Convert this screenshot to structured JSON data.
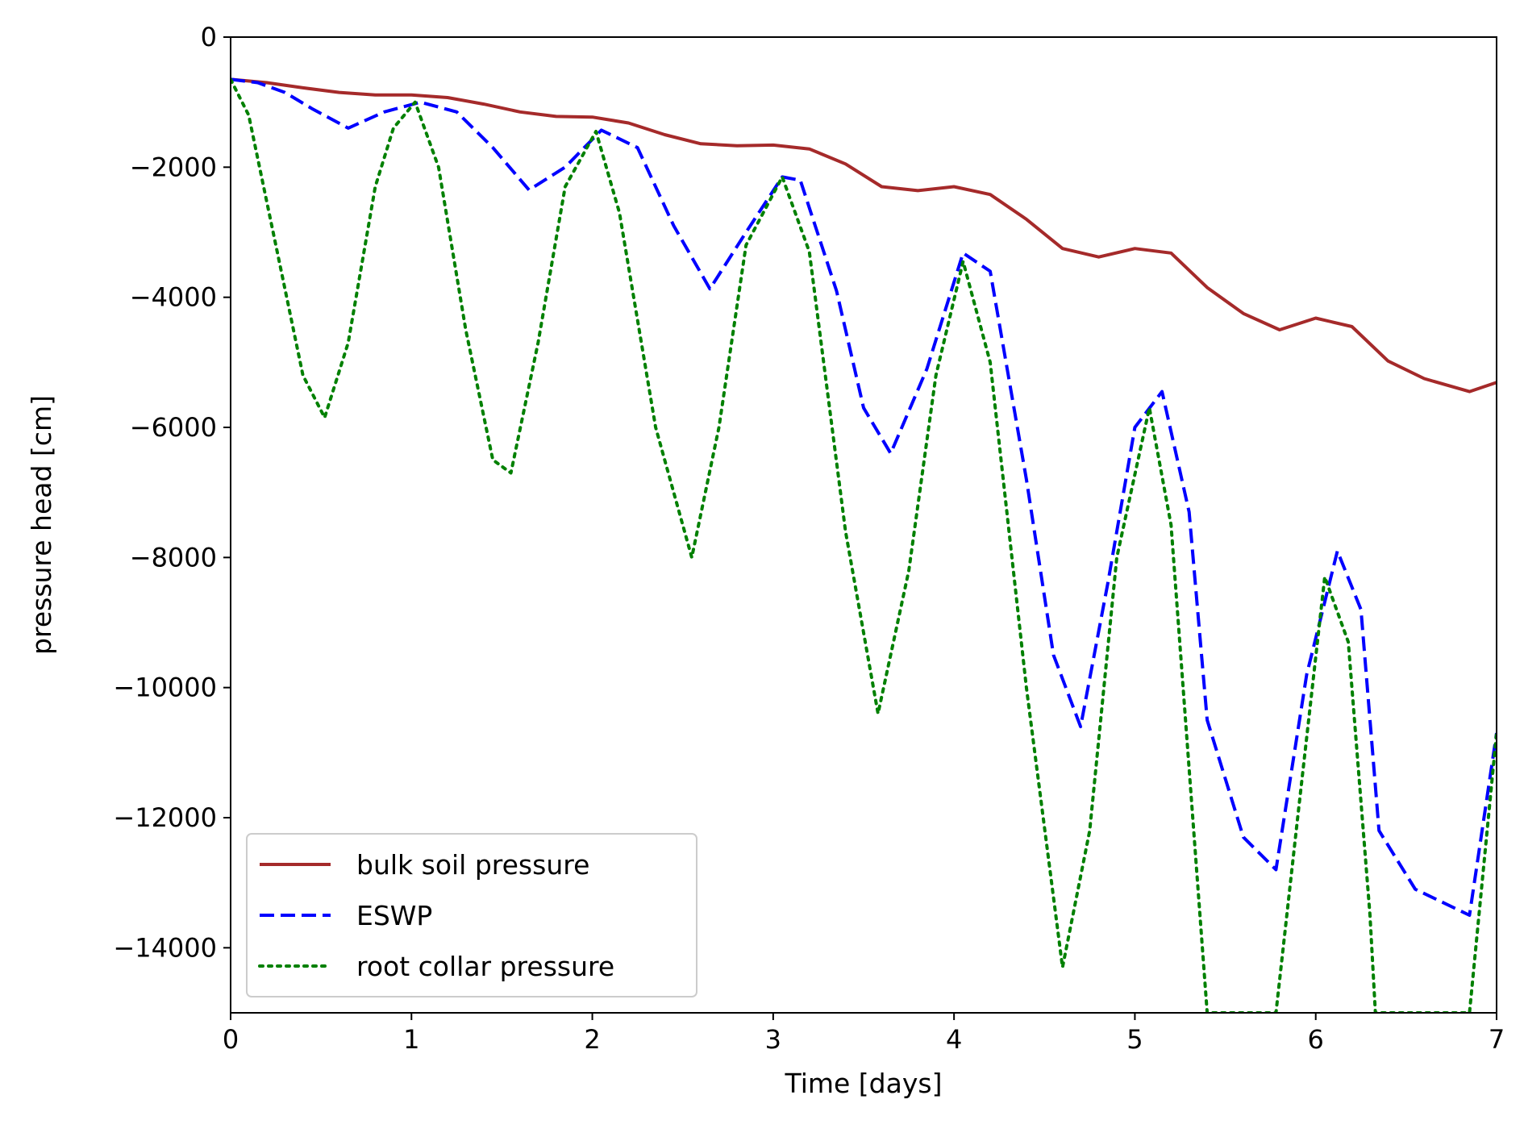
{
  "chart_data": {
    "type": "line",
    "xlabel": "Time [days]",
    "ylabel": "pressure head [cm]",
    "xlim": [
      0,
      7
    ],
    "ylim": [
      -15000,
      0
    ],
    "xticks": [
      0,
      1,
      2,
      3,
      4,
      5,
      6,
      7
    ],
    "xtick_labels": [
      "0",
      "1",
      "2",
      "3",
      "4",
      "5",
      "6",
      "7"
    ],
    "yticks": [
      0,
      -2000,
      -4000,
      -6000,
      -8000,
      -10000,
      -12000,
      -14000
    ],
    "ytick_labels": [
      "0",
      "−2000",
      "−4000",
      "−6000",
      "−8000",
      "−10000",
      "−12000",
      "−14000"
    ],
    "grid": false,
    "legend_position": "lower-left",
    "series": [
      {
        "name": "bulk soil pressure",
        "color": "#a52a2a",
        "style": "solid",
        "x": [
          0,
          0.2,
          0.4,
          0.6,
          0.8,
          1.0,
          1.2,
          1.4,
          1.6,
          1.8,
          2.0,
          2.2,
          2.4,
          2.6,
          2.8,
          3.0,
          3.2,
          3.4,
          3.6,
          3.8,
          4.0,
          4.2,
          4.4,
          4.6,
          4.8,
          5.0,
          5.2,
          5.4,
          5.6,
          5.8,
          6.0,
          6.2,
          6.4,
          6.6,
          6.85,
          7.0
        ],
        "y": [
          -650,
          -700,
          -780,
          -850,
          -890,
          -890,
          -930,
          -1030,
          -1150,
          -1220,
          -1230,
          -1320,
          -1500,
          -1640,
          -1670,
          -1660,
          -1720,
          -1950,
          -2300,
          -2360,
          -2300,
          -2420,
          -2800,
          -3250,
          -3380,
          -3250,
          -3320,
          -3850,
          -4250,
          -4500,
          -4320,
          -4450,
          -4980,
          -5250,
          -5450,
          -5310
        ]
      },
      {
        "name": "ESWP",
        "color": "#0000ff",
        "style": "dashed",
        "x": [
          0,
          0.15,
          0.3,
          0.45,
          0.65,
          0.85,
          1.05,
          1.25,
          1.45,
          1.65,
          1.85,
          2.05,
          2.25,
          2.45,
          2.65,
          2.85,
          3.05,
          3.15,
          3.35,
          3.5,
          3.65,
          3.85,
          4.05,
          4.2,
          4.4,
          4.55,
          4.7,
          4.85,
          5.0,
          5.15,
          5.3,
          5.4,
          5.6,
          5.78,
          5.95,
          6.12,
          6.25,
          6.35,
          6.55,
          6.85,
          7.0
        ],
        "y": [
          -650,
          -700,
          -850,
          -1100,
          -1400,
          -1150,
          -1000,
          -1150,
          -1700,
          -2350,
          -2000,
          -1430,
          -1700,
          -2900,
          -3870,
          -3000,
          -2150,
          -2200,
          -3900,
          -5700,
          -6400,
          -5100,
          -3320,
          -3600,
          -6800,
          -9500,
          -10600,
          -8400,
          -6000,
          -5450,
          -7300,
          -10500,
          -12300,
          -12800,
          -9800,
          -7900,
          -8800,
          -12200,
          -13100,
          -13500,
          -10700
        ]
      },
      {
        "name": "root collar pressure",
        "color": "#008000",
        "style": "dotted",
        "x": [
          0,
          0.1,
          0.25,
          0.4,
          0.52,
          0.65,
          0.8,
          0.9,
          1.02,
          1.15,
          1.3,
          1.45,
          1.55,
          1.7,
          1.85,
          2.02,
          2.15,
          2.35,
          2.55,
          2.7,
          2.85,
          3.05,
          3.2,
          3.4,
          3.58,
          3.75,
          3.9,
          4.05,
          4.2,
          4.4,
          4.6,
          4.75,
          4.9,
          5.08,
          5.2,
          5.32,
          5.4,
          5.78,
          5.9,
          6.05,
          6.18,
          6.3,
          6.33,
          6.85,
          7.0
        ],
        "y": [
          -650,
          -1200,
          -3200,
          -5200,
          -5850,
          -4700,
          -2300,
          -1400,
          -1000,
          -2000,
          -4500,
          -6500,
          -6700,
          -4700,
          -2300,
          -1450,
          -2700,
          -6000,
          -8000,
          -6000,
          -3200,
          -2150,
          -3300,
          -7600,
          -10400,
          -8200,
          -5200,
          -3450,
          -5000,
          -10000,
          -14300,
          -12200,
          -8000,
          -5700,
          -7500,
          -12000,
          -15000,
          -15000,
          -12000,
          -8300,
          -9300,
          -13500,
          -15000,
          -15000,
          -10700
        ]
      }
    ]
  }
}
